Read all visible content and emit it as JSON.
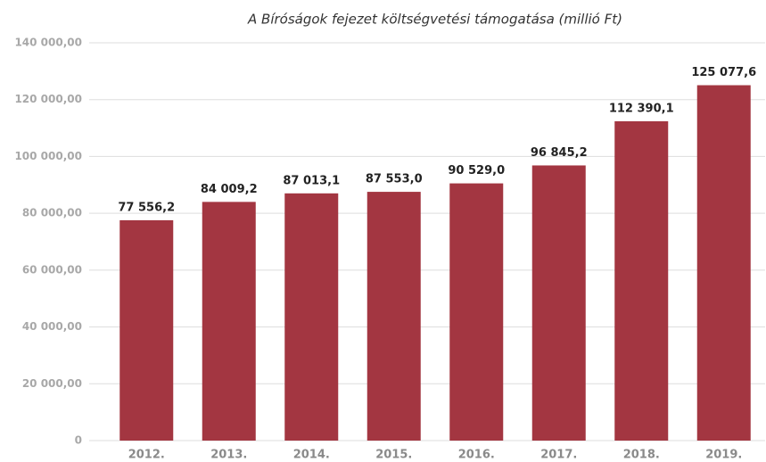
{
  "chart_data": {
    "type": "bar",
    "title": "A Bíróságok fejezet költségvetési támogatása (millió Ft)",
    "categories": [
      "2012.",
      "2013.",
      "2014.",
      "2015.",
      "2016.",
      "2017.",
      "2018.",
      "2019."
    ],
    "values": [
      77556.2,
      84009.2,
      87013.1,
      87553.0,
      90529.0,
      96845.2,
      112390.1,
      125077.6
    ],
    "value_labels": [
      "77 556,2",
      "84 009,2",
      "87 013,1",
      "87 553,0",
      "90 529,0",
      "96 845,2",
      "112 390,1",
      "125 077,6"
    ],
    "color": "#a33641",
    "ylim": [
      0,
      140000
    ],
    "yticks": [
      0,
      {
        "value": 20000,
        "label": "20 000,00"
      },
      {
        "value": 40000,
        "label": "40 000,00"
      },
      {
        "value": 60000,
        "label": "60 000,00"
      },
      {
        "value": 80000,
        "label": "80 000,00"
      },
      {
        "value": 100000,
        "label": "100 000,00"
      },
      {
        "value": 120000,
        "label": "120 000,00"
      },
      {
        "value": 140000,
        "label": "140 000,00"
      }
    ],
    "grid": true
  }
}
